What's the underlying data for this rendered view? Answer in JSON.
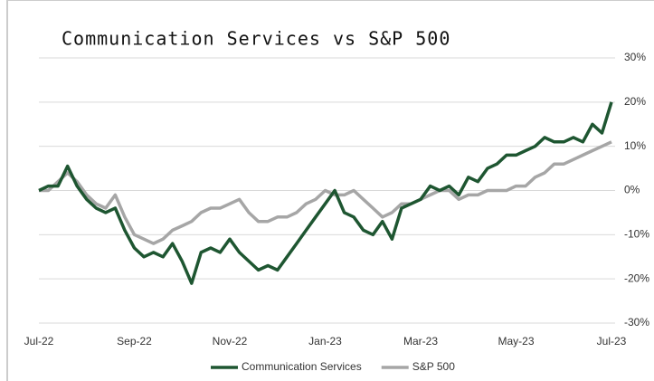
{
  "chart_data": {
    "type": "line",
    "title": "Communication Services vs S&P 500",
    "categories": [
      "Jul-22",
      null,
      null,
      null,
      null,
      null,
      null,
      null,
      null,
      null,
      "Sep-22",
      null,
      null,
      null,
      null,
      null,
      null,
      null,
      null,
      null,
      "Nov-22",
      null,
      null,
      null,
      null,
      null,
      null,
      null,
      null,
      null,
      "Jan-23",
      null,
      null,
      null,
      null,
      null,
      null,
      null,
      null,
      null,
      "Mar-23",
      null,
      null,
      null,
      null,
      null,
      null,
      null,
      null,
      null,
      "May-23",
      null,
      null,
      null,
      null,
      null,
      null,
      null,
      null,
      null,
      "Jul-23"
    ],
    "series": [
      {
        "name": "Communication Services",
        "color": "#1e5631",
        "values": [
          0,
          1,
          1,
          5.5,
          1,
          -2,
          -4,
          -5,
          -4,
          -9,
          -13,
          -15,
          -14,
          -15,
          -12,
          -16,
          -21,
          -14,
          -13,
          -14,
          -11,
          -14,
          -16,
          -18,
          -17,
          -18,
          -15,
          -12,
          -9,
          -6,
          -3,
          0,
          -5,
          -6,
          -9,
          -10,
          -7,
          -11,
          -4,
          -3,
          -2,
          1,
          0,
          1,
          -1,
          3,
          2,
          5,
          6,
          8,
          8,
          9,
          10,
          12,
          11,
          11,
          12,
          11,
          15,
          13,
          20
        ]
      },
      {
        "name": "S&P 500",
        "color": "#a6a6a6",
        "values": [
          0,
          0,
          2,
          4,
          2,
          -1,
          -3,
          -4,
          -1,
          -6,
          -10,
          -11,
          -12,
          -11,
          -9,
          -8,
          -7,
          -5,
          -4,
          -4,
          -3,
          -2,
          -5,
          -7,
          -7,
          -6,
          -6,
          -5,
          -3,
          -2,
          0,
          -1,
          -1,
          0,
          -2,
          -4,
          -6,
          -5,
          -3,
          -3,
          -2,
          -1,
          0,
          0,
          -2,
          -1,
          -1,
          0,
          0,
          0,
          1,
          1,
          3,
          4,
          6,
          6,
          7,
          8,
          9,
          10,
          11
        ]
      }
    ],
    "ylim": [
      -30,
      30
    ],
    "yticks": [
      {
        "value": -30,
        "label": "-30%"
      },
      {
        "value": -20,
        "label": "-20%"
      },
      {
        "value": -10,
        "label": "-10%"
      },
      {
        "value": 0,
        "label": "0%"
      },
      {
        "value": 10,
        "label": "10%"
      },
      {
        "value": 20,
        "label": "20%"
      },
      {
        "value": 30,
        "label": "30%"
      }
    ],
    "grid": true,
    "legend": "bottom"
  }
}
